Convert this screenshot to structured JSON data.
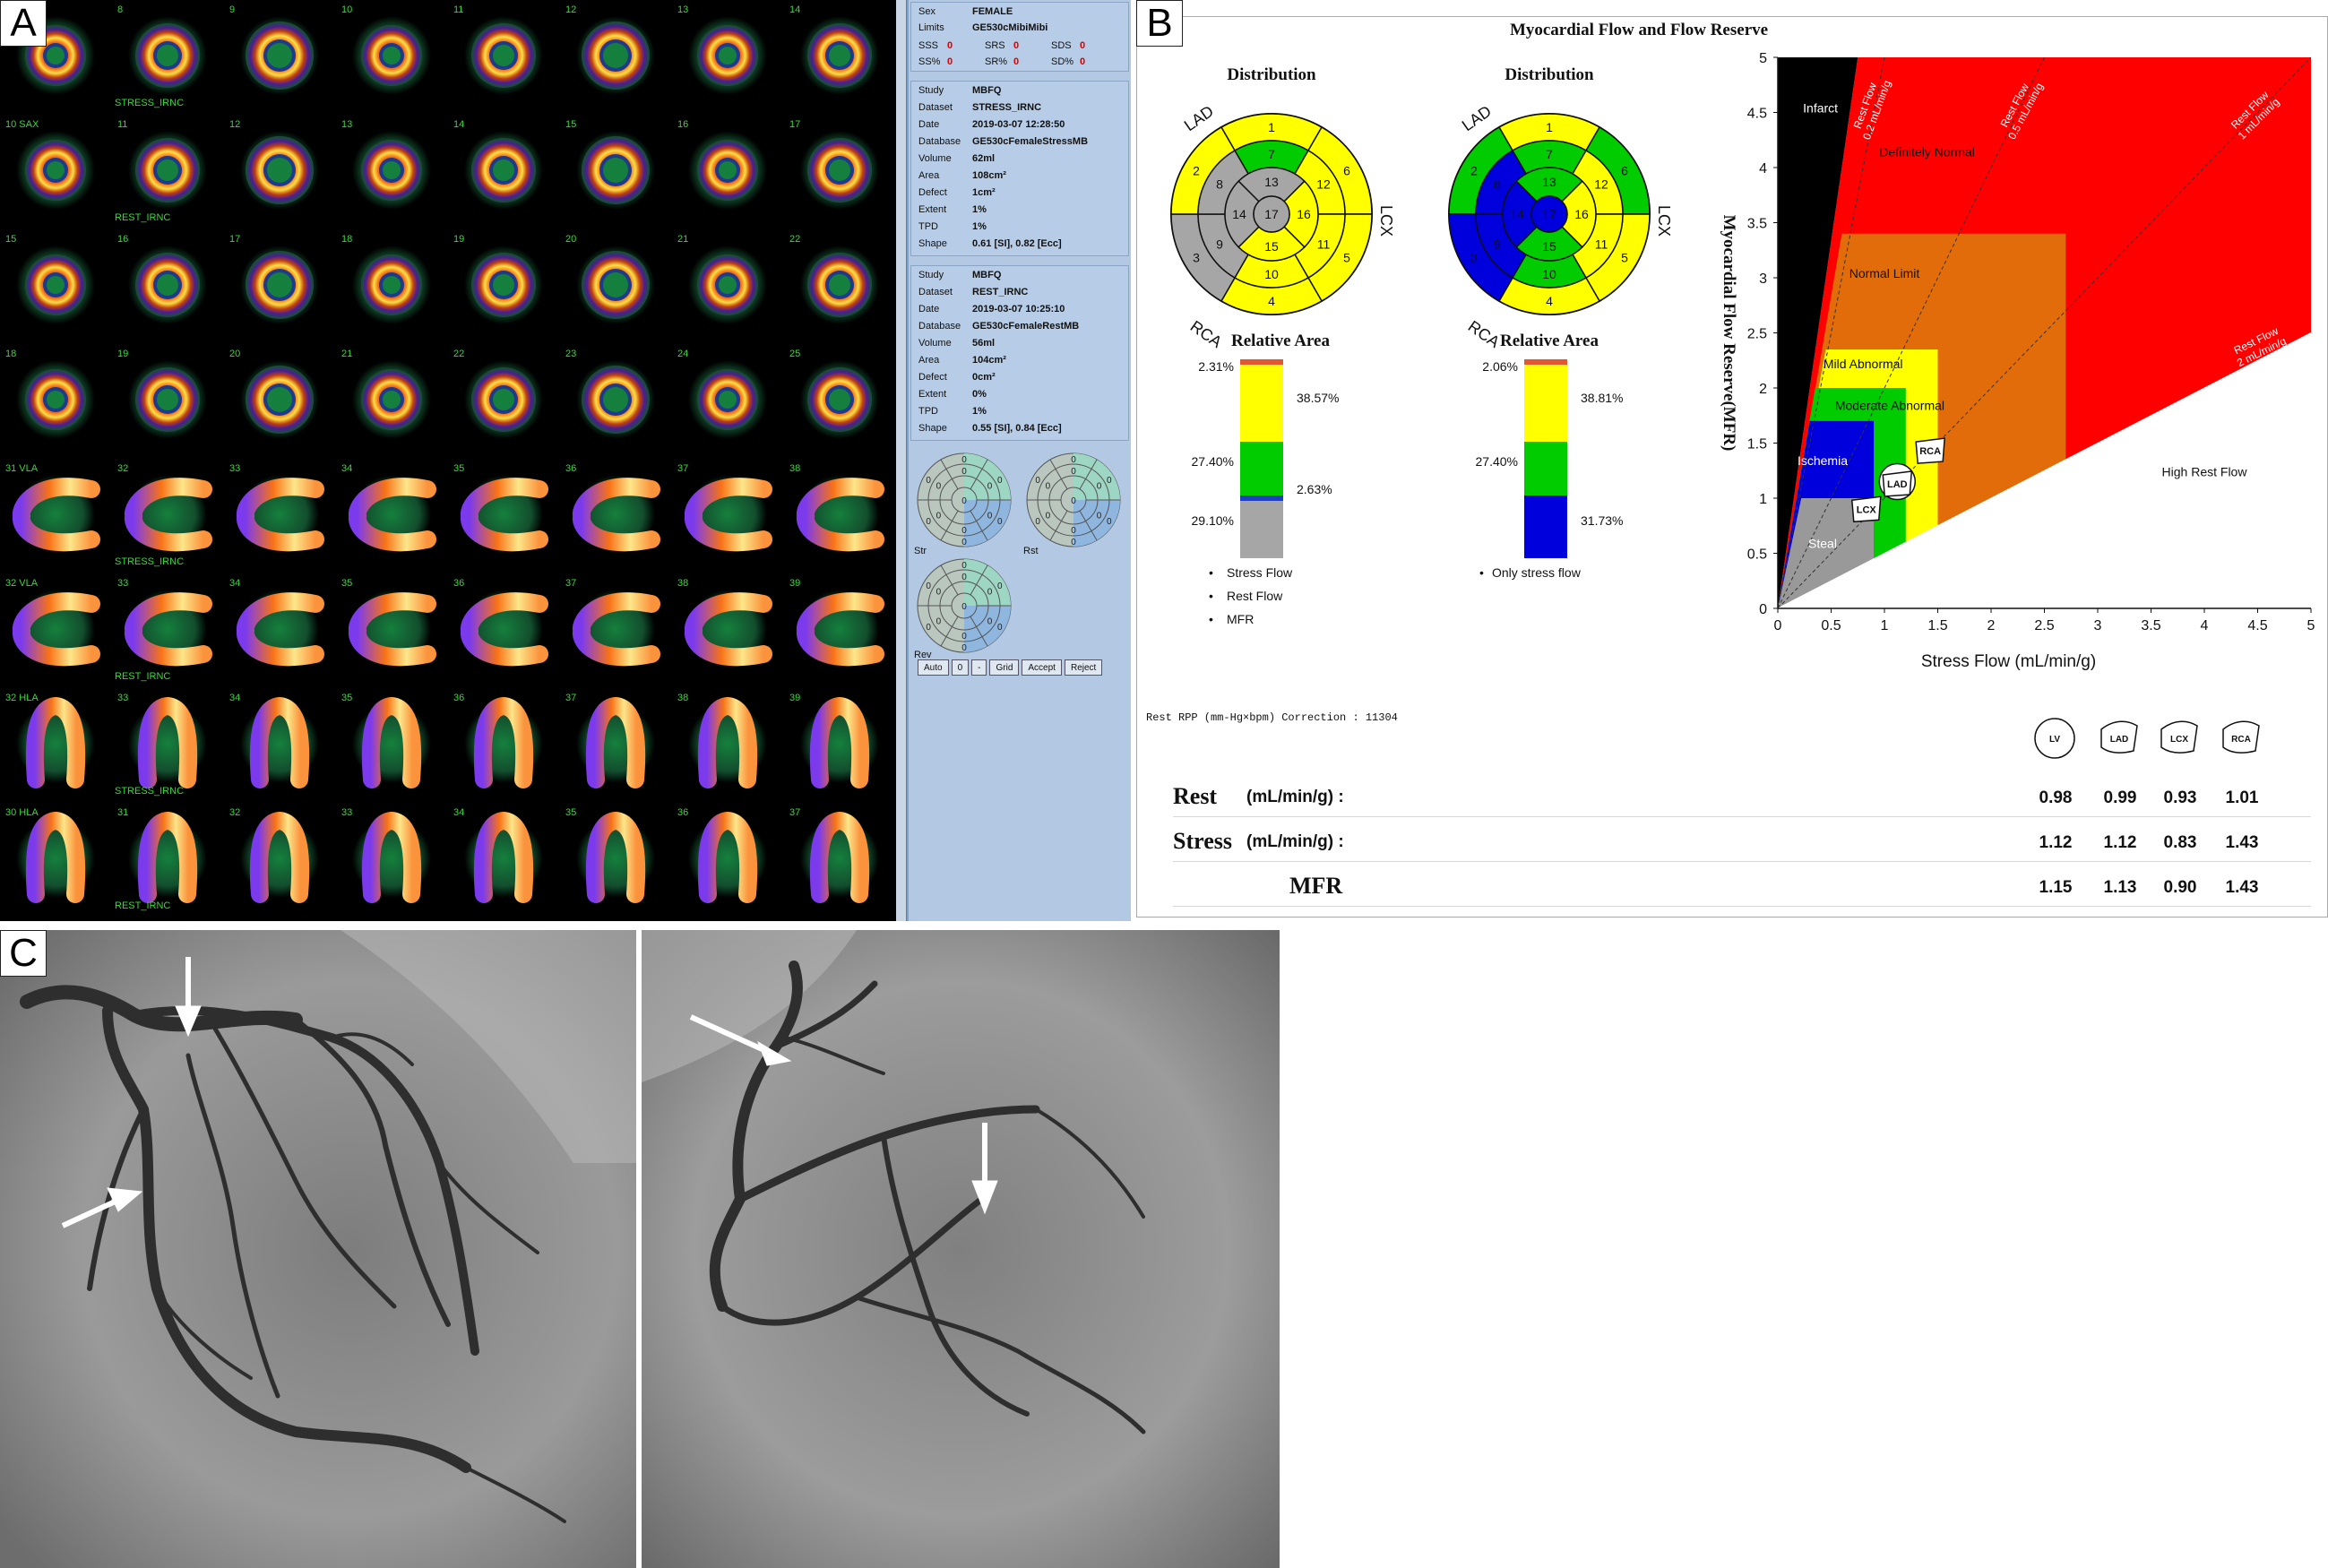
{
  "panel_labels": {
    "a": "A",
    "b": "B",
    "c": "C"
  },
  "spect": {
    "rows": [
      {
        "type": "sax",
        "labels": [
          "",
          "8",
          "9",
          "10",
          "11",
          "12",
          "13",
          "14"
        ],
        "tag": "STRESS_IRNC"
      },
      {
        "type": "sax",
        "labels": [
          "10 SAX",
          "11",
          "12",
          "13",
          "14",
          "15",
          "16",
          "17"
        ],
        "tag": "REST_IRNC"
      },
      {
        "type": "sax",
        "labels": [
          "15",
          "16",
          "17",
          "18",
          "19",
          "20",
          "21",
          "22"
        ],
        "tag": ""
      },
      {
        "type": "sax",
        "labels": [
          "18",
          "19",
          "20",
          "21",
          "22",
          "23",
          "24",
          "25"
        ],
        "tag": ""
      },
      {
        "type": "vla",
        "labels": [
          "31 VLA",
          "32",
          "33",
          "34",
          "35",
          "36",
          "37",
          "38"
        ],
        "tag": "STRESS_IRNC"
      },
      {
        "type": "vla",
        "labels": [
          "32 VLA",
          "33",
          "34",
          "35",
          "36",
          "37",
          "38",
          "39"
        ],
        "tag": "REST_IRNC"
      },
      {
        "type": "hla",
        "labels": [
          "32 HLA",
          "33",
          "34",
          "35",
          "36",
          "37",
          "38",
          "39"
        ],
        "tag": "STRESS_IRNC"
      },
      {
        "type": "hla",
        "labels": [
          "30 HLA",
          "31",
          "32",
          "33",
          "34",
          "35",
          "36",
          "37"
        ],
        "tag": "REST_IRNC"
      }
    ]
  },
  "info": {
    "sex_key": "Sex",
    "sex": "FEMALE",
    "limits_key": "Limits",
    "limits": "GE530cMibiMibi",
    "sss_key": "SSS",
    "sss": "0",
    "srs_key": "SRS",
    "srs": "0",
    "sds_key": "SDS",
    "sds": "0",
    "ssp_key": "SS%",
    "ssp": "0",
    "srp_key": "SR%",
    "srp": "0",
    "sdp_key": "SD%",
    "sdp": "0",
    "stress": {
      "study_key": "Study",
      "study": "MBFQ",
      "dataset_key": "Dataset",
      "dataset": "STRESS_IRNC",
      "date_key": "Date",
      "date": "2019-03-07 12:28:50",
      "database_key": "Database",
      "database": "GE530cFemaleStressMB",
      "volume_key": "Volume",
      "volume": "62ml",
      "area_key": "Area",
      "area": "108cm²",
      "defect_key": "Defect",
      "defect": "1cm²",
      "extent_key": "Extent",
      "extent": "1%",
      "tpd_key": "TPD",
      "tpd": "1%",
      "shape_key": "Shape",
      "shape": "0.61 [SI], 0.82 [Ecc]"
    },
    "rest": {
      "study_key": "Study",
      "study": "MBFQ",
      "dataset_key": "Dataset",
      "dataset": "REST_IRNC",
      "date_key": "Date",
      "date": "2019-03-07 10:25:10",
      "database_key": "Database",
      "database": "GE530cFemaleRestMB",
      "volume_key": "Volume",
      "volume": "56ml",
      "area_key": "Area",
      "area": "104cm²",
      "defect_key": "Defect",
      "defect": "0cm²",
      "extent_key": "Extent",
      "extent": "0%",
      "tpd_key": "TPD",
      "tpd": "1%",
      "shape_key": "Shape",
      "shape": "0.55 [SI], 0.84 [Ecc]"
    },
    "polar_labels": {
      "str": "Str",
      "rst": "Rst",
      "rev": "Rev"
    },
    "buttons": {
      "auto": "Auto",
      "zero": "0",
      "minus": "-",
      "grid": "Grid",
      "accept": "Accept",
      "reject": "Reject"
    }
  },
  "flow_panel": {
    "title": "Myocardial Flow and Flow Reserve",
    "distribution_label": "Distribution",
    "relative_area_label": "Relative Area",
    "territories": {
      "lad": "LAD",
      "lcx": "LCX",
      "rca": "RCA"
    },
    "segments": [
      "1",
      "2",
      "3",
      "4",
      "5",
      "6",
      "7",
      "8",
      "9",
      "10",
      "11",
      "12",
      "13",
      "14",
      "15",
      "16",
      "17"
    ],
    "relarea_left": {
      "top": "2.31%",
      "mid_yellow": "38.57%",
      "green": "27.40%",
      "blue": "2.63%",
      "gray": "29.10%"
    },
    "relarea_right": {
      "top": "2.06%",
      "mid_yellow": "38.81%",
      "green": "27.40%",
      "blue": "31.73%"
    },
    "legend_left": [
      "Stress Flow",
      "Rest Flow",
      "MFR"
    ],
    "legend_right": [
      "Only stress flow"
    ],
    "rpp_text": "Rest RPP (mm-Hg×bpm) Correction : 11304",
    "icons": [
      "LV",
      "LAD",
      "LCX",
      "RCA"
    ],
    "rows": [
      {
        "label": "Rest",
        "unit": "(mL/min/g) :",
        "values": [
          "0.98",
          "0.99",
          "0.93",
          "1.01"
        ]
      },
      {
        "label": "Stress",
        "unit": "(mL/min/g) :",
        "values": [
          "1.12",
          "1.12",
          "0.83",
          "1.43"
        ]
      },
      {
        "label": "MFR",
        "unit": "",
        "values": [
          "1.15",
          "1.13",
          "0.90",
          "1.43"
        ]
      }
    ]
  },
  "chart_data": {
    "type": "scatter",
    "title": "",
    "xlabel": "Stress Flow (mL/min/g)",
    "ylabel": "Myocardial Flow Reserve(MFR)",
    "xlim": [
      0,
      5
    ],
    "ylim": [
      0,
      5
    ],
    "xticks": [
      "0",
      "0.5",
      "1",
      "1.5",
      "2",
      "2.5",
      "3",
      "3.5",
      "4",
      "4.5",
      "5"
    ],
    "yticks": [
      "0",
      "0.5",
      "1",
      "1.5",
      "2",
      "2.5",
      "3",
      "3.5",
      "4",
      "4.5",
      "5"
    ],
    "regions": [
      {
        "name": "Infarct",
        "color": "#000000"
      },
      {
        "name": "Definitely Normal",
        "color": "#ff0000"
      },
      {
        "name": "Normal Limit",
        "color": "#e36c0a"
      },
      {
        "name": "Mild Abnormal",
        "color": "#ffff00"
      },
      {
        "name": "Moderate Abnormal",
        "color": "#00cc00"
      },
      {
        "name": "Ischemia",
        "color": "#0000dd"
      },
      {
        "name": "Steal",
        "color": "#999999"
      },
      {
        "name": "High Rest Flow",
        "color": "#ffffff"
      }
    ],
    "rest_flow_lines": [
      {
        "name": "Rest Flow 0.2 mL/min/g",
        "rest_flow": 0.2
      },
      {
        "name": "Rest Flow 0.5 mL/min/g",
        "rest_flow": 0.5
      },
      {
        "name": "Rest Flow 1 mL/min/g",
        "rest_flow": 1
      },
      {
        "name": "Rest Flow 2 mL/min/g",
        "rest_flow": 2
      }
    ],
    "points": [
      {
        "name": "LV",
        "x": 1.12,
        "y": 1.15
      },
      {
        "name": "LAD",
        "x": 1.12,
        "y": 1.13
      },
      {
        "name": "LCX",
        "x": 0.83,
        "y": 0.9
      },
      {
        "name": "RCA",
        "x": 1.43,
        "y": 1.43
      }
    ]
  }
}
